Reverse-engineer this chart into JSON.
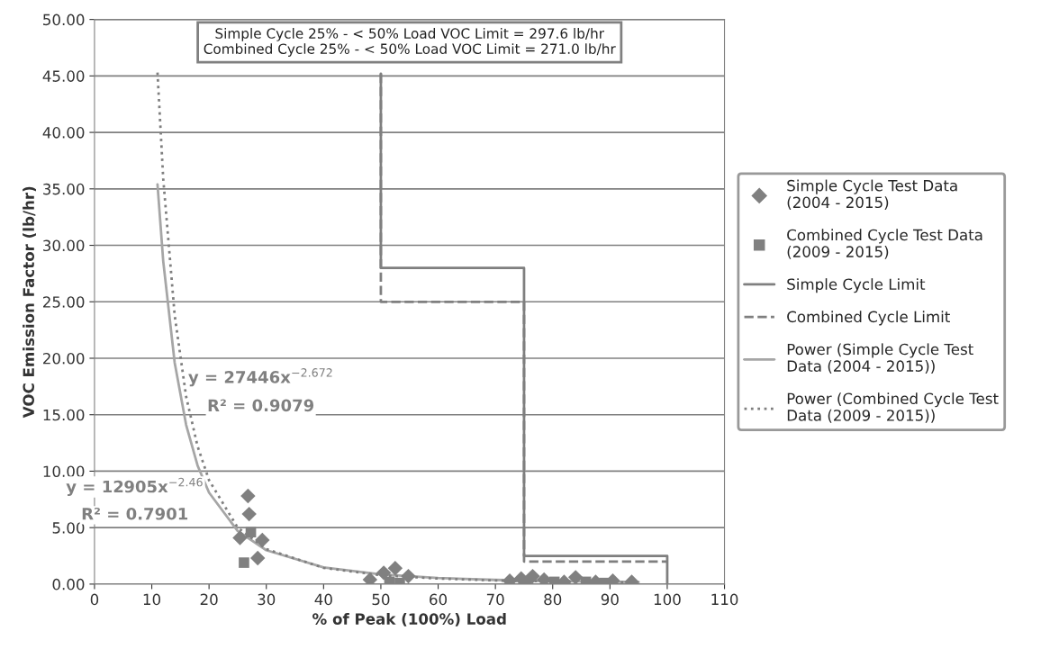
{
  "chart_data": {
    "type": "scatter",
    "xlabel": "% of Peak (100%) Load",
    "ylabel": "VOC Emission Factor (lb/hr)",
    "xlim": [
      0,
      110
    ],
    "xticks": [
      0,
      10,
      20,
      30,
      40,
      50,
      60,
      70,
      80,
      90,
      100,
      110
    ],
    "ylim": [
      0,
      50
    ],
    "yticks": [
      {
        "value": 0,
        "label": "0.00"
      },
      {
        "value": 5,
        "label": "5.00"
      },
      {
        "value": 10,
        "label": "10.00"
      },
      {
        "value": 15,
        "label": "15.00"
      },
      {
        "value": 20,
        "label": "20.00"
      },
      {
        "value": 25,
        "label": "25.00"
      },
      {
        "value": 30,
        "label": "30.00"
      },
      {
        "value": 35,
        "label": "35.00"
      },
      {
        "value": 40,
        "label": "40.00"
      },
      {
        "value": 45,
        "label": "45.00"
      },
      {
        "value": 50,
        "label": "50.00"
      }
    ],
    "grid": "y",
    "legend": "right",
    "series": [
      {
        "name": "Simple Cycle Test Data (2004 - 2015)",
        "marker": "diamond",
        "color": "#808080",
        "x": [
          26.8,
          27.0,
          25.4,
          28.5,
          29.3,
          48.1,
          50.5,
          52.5,
          54.8,
          72.5,
          74.5,
          76.5,
          78.5,
          82.0,
          84.0,
          87.5,
          90.5,
          93.8
        ],
        "values": [
          7.8,
          6.2,
          4.1,
          2.3,
          3.9,
          0.4,
          1.0,
          1.4,
          0.7,
          0.3,
          0.5,
          0.7,
          0.4,
          0.2,
          0.6,
          0.2,
          0.3,
          0.2
        ]
      },
      {
        "name": "Combined Cycle Test Data (2009 - 2015)",
        "marker": "square",
        "color": "#808080",
        "x": [
          26.1,
          27.3,
          51.5,
          53.3,
          75.5,
          80.3,
          85.8,
          89.0
        ],
        "values": [
          1.9,
          4.6,
          0.2,
          0.1,
          0.1,
          0.2,
          0.2,
          0.1
        ]
      },
      {
        "name": "Simple Cycle Limit",
        "type": "line",
        "line_style": "solid",
        "marker": "none",
        "color": "#7f7f7f",
        "x": [
          50,
          50,
          75,
          75,
          100,
          100
        ],
        "values": [
          45.2,
          28.0,
          28.0,
          2.5,
          2.5,
          0
        ]
      },
      {
        "name": "Combined Cycle Limit",
        "type": "line",
        "line_style": "dashed",
        "marker": "none",
        "color": "#7f7f7f",
        "x": [
          50,
          50,
          75,
          75,
          100
        ],
        "values": [
          45.2,
          25.0,
          25.0,
          2.0,
          2.0
        ]
      },
      {
        "name": "Power (Simple Cycle Test Data (2004 - 2015))",
        "type": "line",
        "line_style": "solid",
        "marker": "none",
        "color": "#a6a6a6",
        "x": [
          11,
          12,
          14,
          16,
          18,
          20,
          25,
          30,
          40,
          50,
          60,
          70,
          80,
          95
        ],
        "values": [
          35.4,
          28.6,
          19.6,
          14.1,
          10.5,
          8.1,
          4.7,
          3.0,
          1.48,
          0.85,
          0.54,
          0.37,
          0.27,
          0.18
        ]
      },
      {
        "name": "Power (Combined Cycle Test Data (2009 - 2015))",
        "type": "line",
        "line_style": "dotted",
        "marker": "none",
        "color": "#7f7f7f",
        "x": [
          11,
          12,
          14,
          16,
          18,
          20,
          25,
          30,
          40,
          50,
          60,
          70,
          80,
          95
        ],
        "values": [
          45.3,
          35.9,
          23.8,
          16.6,
          12.2,
          9.2,
          5.0,
          3.1,
          1.44,
          0.79,
          0.49,
          0.32,
          0.23,
          0.14
        ]
      }
    ],
    "annotations": [
      "Simple Cycle 25% - < 50% Load VOC Limit = 297.6 lb/hr\nCombined Cycle 25% - < 50% Load VOC Limit = 271.0 lb/hr",
      "y = 27446x$^{−2.672}$",
      "R² = 0.9079",
      "y = 12905x$^{−2.46}$",
      "R² = 0.7901"
    ]
  }
}
